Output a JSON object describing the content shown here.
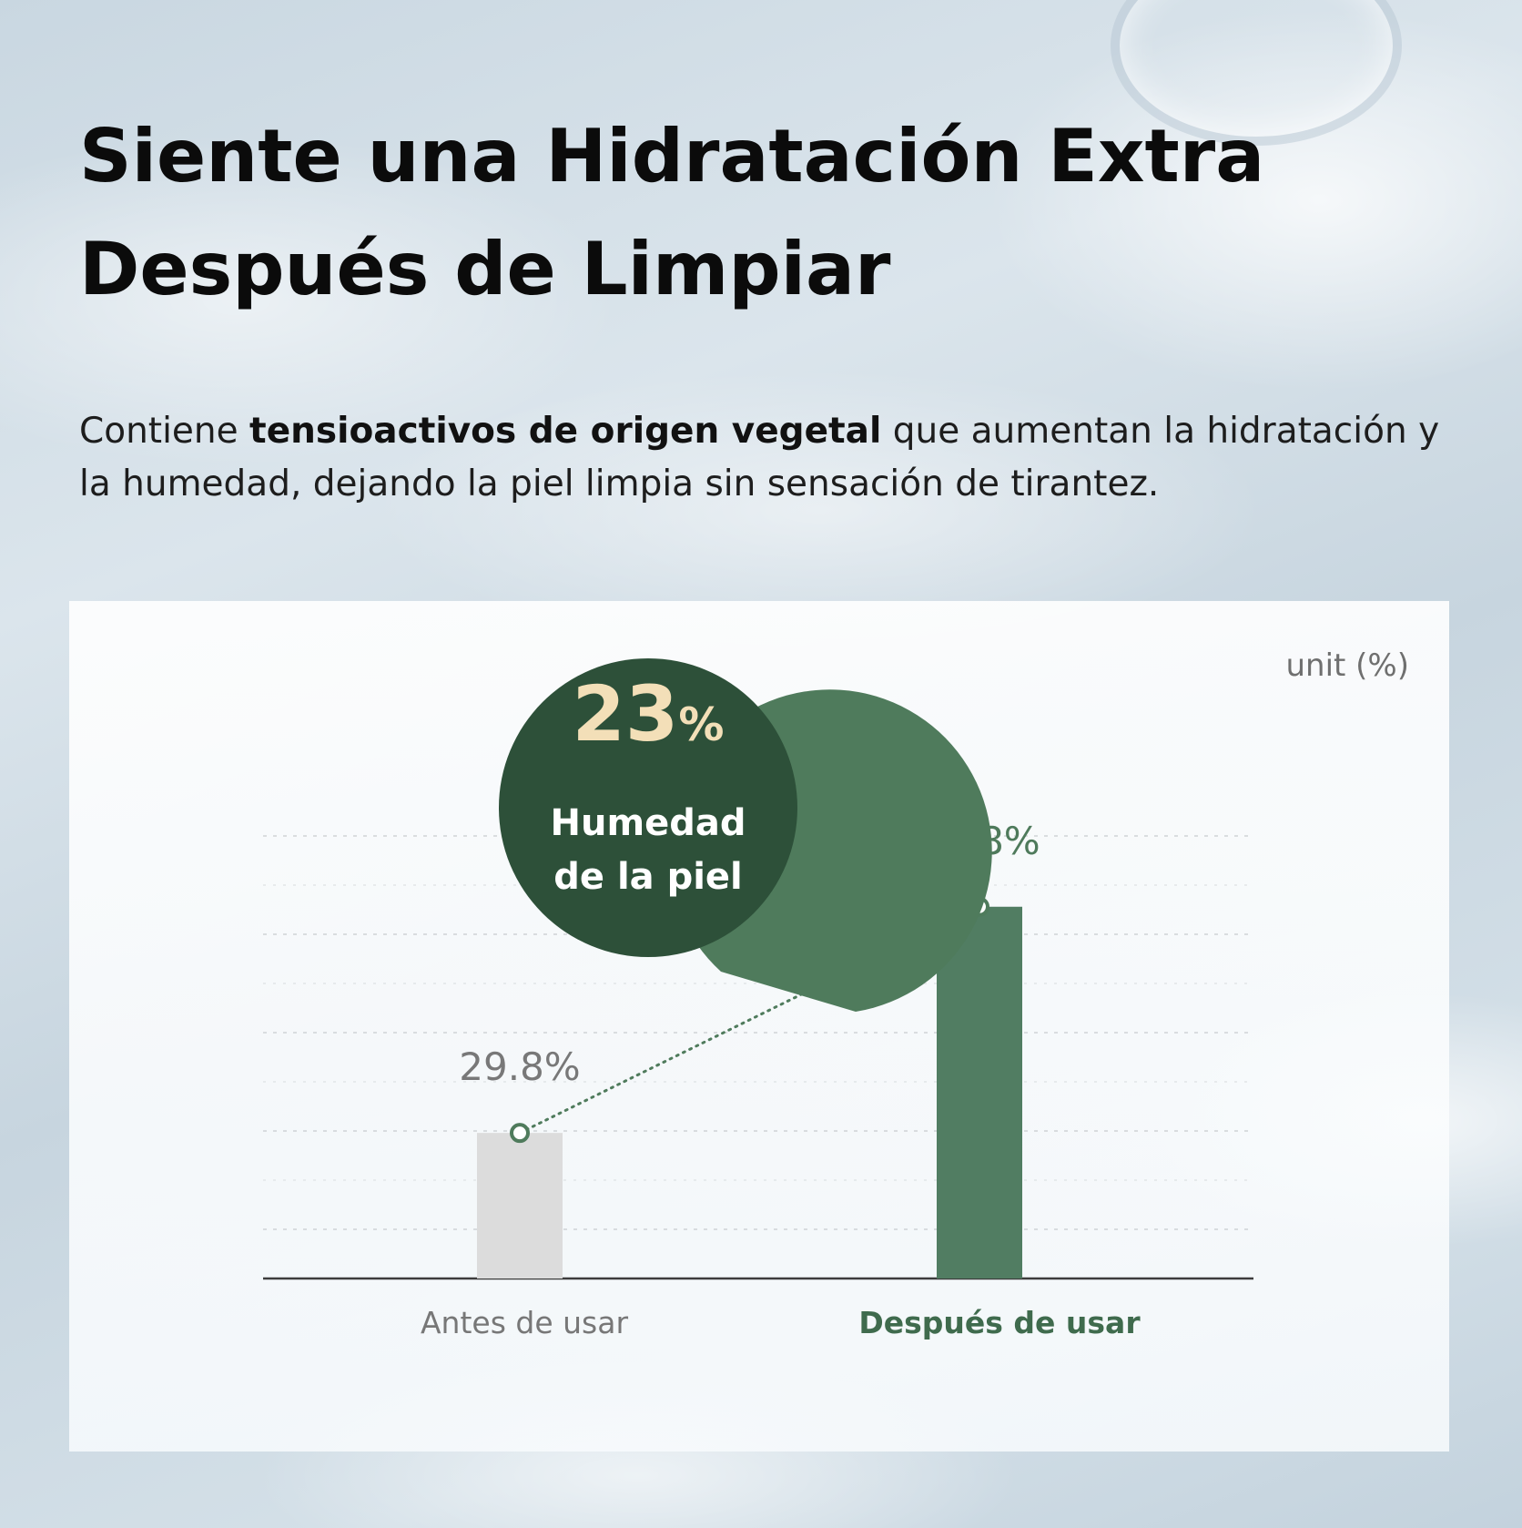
{
  "heading": {
    "line1": "Siente una Hidratación Extra",
    "line2": "Después de Limpiar"
  },
  "description": {
    "part1": "Contiene ",
    "bold": "tensioactivos de origen vegetal",
    "part2": " que aumentan la hidratación y la humedad, dejando la piel limpia sin sensación de tirantez."
  },
  "colors": {
    "before_bar": "#dcdcdc",
    "after_bar": "#517d62",
    "badge_outer": "#4f7b5c",
    "badge_inner": "#2d5039",
    "accent_text": "#f3dfb8"
  },
  "badge": {
    "value": "23",
    "unit_symbol": "%",
    "line1": "Humedad",
    "line2": "de la piel"
  },
  "chart_data": {
    "type": "bar",
    "title": "",
    "unit_label": "unit (%)",
    "categories": [
      "Antes de usar",
      "Después de usar"
    ],
    "values": [
      29.8,
      52.8
    ],
    "value_labels": [
      "29.8%",
      "52.8%"
    ],
    "ylim": [
      15,
      70
    ],
    "grid": true,
    "gridline_values": [
      20,
      30,
      40,
      50,
      60
    ],
    "legend": "none",
    "annotation": "dotted line connecting the tops of the two bars"
  }
}
